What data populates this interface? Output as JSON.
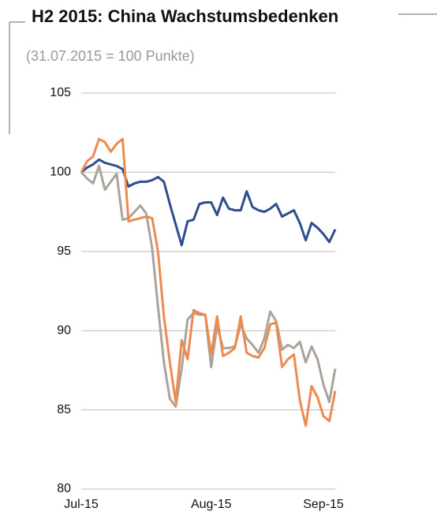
{
  "chart_data": {
    "type": "line",
    "title": "H2 2015: China Wachstumsbedenken",
    "subtitle": "(31.07.2015 = 100 Punkte)",
    "categories": [
      "Jul-15",
      null,
      null,
      null,
      null,
      null,
      null,
      null,
      null,
      null,
      null,
      null,
      null,
      null,
      null,
      null,
      null,
      null,
      null,
      null,
      null,
      null,
      "Aug-15",
      null,
      null,
      null,
      null,
      null,
      null,
      null,
      null,
      null,
      null,
      null,
      null,
      null,
      null,
      null,
      null,
      null,
      null,
      "Sep-15",
      null,
      null
    ],
    "series": [
      {
        "color": "#2e4d8f",
        "values": [
          100,
          100.3,
          100.5,
          100.8,
          100.6,
          100.5,
          100.4,
          100.2,
          99.1,
          99.3,
          99.4,
          99.4,
          99.5,
          99.7,
          99.4,
          98.0,
          96.7,
          95.4,
          96.9,
          97.0,
          98.0,
          98.1,
          98.1,
          97.3,
          98.4,
          97.7,
          97.6,
          97.6,
          98.8,
          97.8,
          97.6,
          97.5,
          97.7,
          98.0,
          97.2,
          97.4,
          97.6,
          96.8,
          95.7,
          96.8,
          96.5,
          96.1,
          95.6,
          96.4
        ]
      },
      {
        "color": "#aaa39a",
        "values": [
          100,
          99.6,
          99.3,
          100.4,
          98.9,
          99.4,
          99.9,
          97.0,
          97.1,
          97.5,
          97.9,
          97.4,
          95.2,
          91.5,
          88.0,
          85.7,
          85.2,
          87.6,
          90.7,
          91.1,
          91.0,
          91.0,
          87.7,
          90.3,
          88.9,
          88.9,
          89.0,
          90.4,
          89.5,
          89.1,
          88.6,
          89.5,
          91.2,
          90.6,
          88.8,
          89.1,
          88.9,
          89.3,
          88.0,
          89.0,
          88.2,
          86.6,
          85.5,
          87.6
        ]
      },
      {
        "color": "#ee8a4f",
        "values": [
          100,
          100.7,
          101.0,
          102.1,
          101.9,
          101.3,
          101.8,
          102.1,
          96.9,
          97.0,
          97.1,
          97.2,
          97.1,
          95.0,
          90.9,
          88.0,
          85.5,
          89.4,
          88.2,
          91.3,
          91.1,
          91.0,
          88.5,
          90.9,
          88.4,
          88.6,
          88.9,
          90.9,
          88.6,
          88.4,
          88.3,
          88.9,
          90.4,
          90.5,
          87.7,
          88.2,
          88.5,
          85.6,
          84.0,
          86.5,
          85.8,
          84.6,
          84.3,
          86.2
        ]
      }
    ],
    "ylim": [
      80,
      105
    ],
    "yticks": [
      80,
      85,
      90,
      95,
      100,
      105
    ],
    "grid": true
  }
}
